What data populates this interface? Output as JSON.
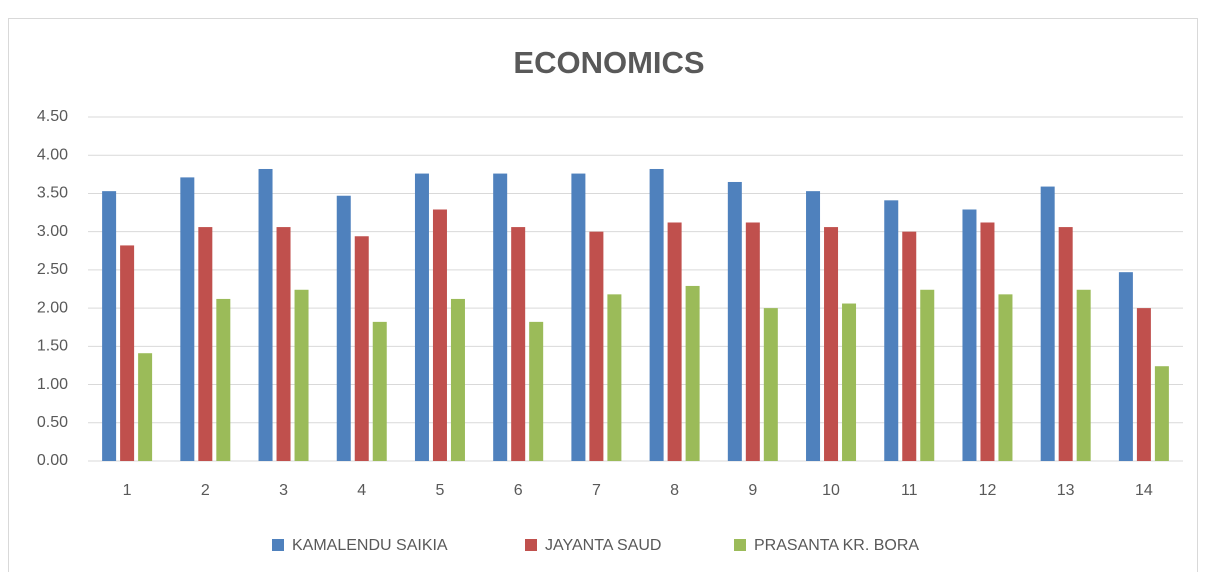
{
  "chart_data": {
    "type": "bar",
    "title": "ECONOMICS",
    "categories": [
      "1",
      "2",
      "3",
      "4",
      "5",
      "6",
      "7",
      "8",
      "9",
      "10",
      "11",
      "12",
      "13",
      "14"
    ],
    "series": [
      {
        "name": "KAMALENDU SAIKIA",
        "color": "#4f81bd",
        "values": [
          3.53,
          3.71,
          3.82,
          3.47,
          3.76,
          3.76,
          3.76,
          3.82,
          3.65,
          3.53,
          3.41,
          3.29,
          3.59,
          2.47
        ]
      },
      {
        "name": "JAYANTA SAUD",
        "color": "#c0504d",
        "values": [
          2.82,
          3.06,
          3.06,
          2.94,
          3.29,
          3.06,
          3.0,
          3.12,
          3.12,
          3.06,
          3.0,
          3.12,
          3.06,
          2.0
        ]
      },
      {
        "name": "PRASANTA KR. BORA",
        "color": "#9bbb59",
        "values": [
          1.41,
          2.12,
          2.24,
          1.82,
          2.12,
          1.82,
          2.18,
          2.29,
          2.0,
          2.06,
          2.24,
          2.18,
          2.24,
          1.24
        ]
      }
    ],
    "ylim": [
      0,
      4.5
    ],
    "yticks": [
      {
        "value": 0,
        "label": "0.00"
      },
      {
        "value": 0.5,
        "label": "0.50"
      },
      {
        "value": 1,
        "label": "1.00"
      },
      {
        "value": 1.5,
        "label": "1.50"
      },
      {
        "value": 2,
        "label": "2.00"
      },
      {
        "value": 2.5,
        "label": "2.50"
      },
      {
        "value": 3,
        "label": "3.00"
      },
      {
        "value": 3.5,
        "label": "3.50"
      },
      {
        "value": 4,
        "label": "4.00"
      },
      {
        "value": 4.5,
        "label": "4.50"
      }
    ],
    "grid": true,
    "legend": "bottom"
  }
}
